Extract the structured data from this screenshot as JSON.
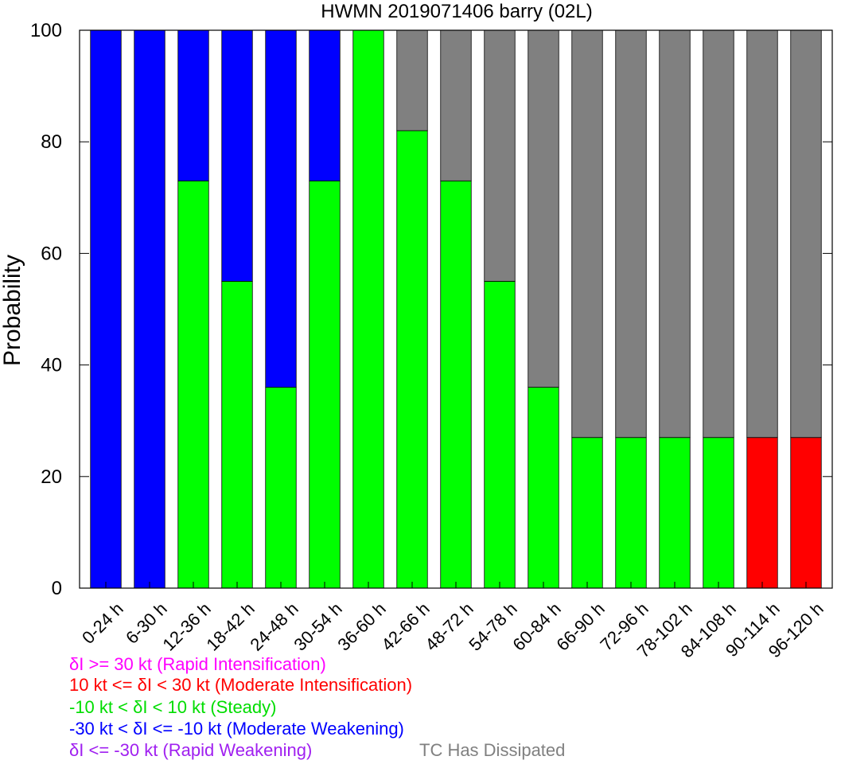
{
  "chart_data": {
    "type": "bar",
    "stacked": true,
    "title": "HWMN 2019071406 barry (02L)",
    "ylabel": "Probability",
    "ylim": [
      0,
      100
    ],
    "yticks": [
      0,
      20,
      40,
      60,
      80,
      100
    ],
    "categories": [
      "0-24 h",
      "6-30 h",
      "12-36 h",
      "18-42 h",
      "24-48 h",
      "30-54 h",
      "36-60 h",
      "42-66 h",
      "48-72 h",
      "54-78 h",
      "60-84 h",
      "66-90 h",
      "72-96 h",
      "78-102 h",
      "84-108 h",
      "90-114 h",
      "96-120 h"
    ],
    "series": [
      {
        "name": "Moderate Intensification",
        "color": "#ff0000",
        "values": [
          0,
          0,
          0,
          0,
          0,
          0,
          0,
          0,
          0,
          0,
          0,
          0,
          0,
          0,
          0,
          27,
          27
        ]
      },
      {
        "name": "Steady",
        "color": "#00ff00",
        "values": [
          0,
          0,
          73,
          55,
          36,
          73,
          100,
          82,
          73,
          55,
          36,
          27,
          27,
          27,
          27,
          0,
          0
        ]
      },
      {
        "name": "Moderate Weakening",
        "color": "#0000ff",
        "values": [
          100,
          100,
          27,
          45,
          64,
          27,
          0,
          0,
          0,
          0,
          0,
          0,
          0,
          0,
          0,
          0,
          0
        ]
      },
      {
        "name": "TC Has Dissipated",
        "color": "#808080",
        "values": [
          0,
          0,
          0,
          0,
          0,
          0,
          0,
          18,
          27,
          45,
          64,
          73,
          73,
          73,
          73,
          73,
          73
        ]
      }
    ],
    "grid": false
  },
  "legend": {
    "items": [
      {
        "text": "δI >= 30 kt (Rapid Intensification)",
        "color": "#ff00ff"
      },
      {
        "text": "10 kt <= δI < 30 kt (Moderate Intensification)",
        "color": "#ff0000"
      },
      {
        "text": "-10 kt < δI < 10 kt (Steady)",
        "color": "#00dd00"
      },
      {
        "text": "-30 kt < δI <= -10 kt (Moderate Weakening)",
        "color": "#0000ff"
      },
      {
        "text": "δI <= -30 kt (Rapid Weakening)",
        "color": "#a020f0"
      }
    ],
    "dissipated": {
      "text": "TC Has Dissipated",
      "color": "#808080"
    }
  }
}
